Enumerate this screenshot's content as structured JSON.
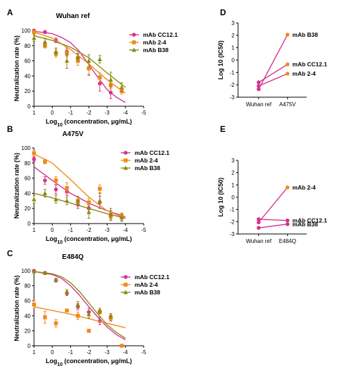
{
  "colors": {
    "cc121": "#d6348e",
    "ab24": "#f08a1c",
    "b38": "#8a8a12"
  },
  "chart_data": [
    {
      "panel": "A",
      "type": "line",
      "title": "Wuhan ref",
      "xlabel": "Log10 (concentration, μg/mL)",
      "ylabel": "Neutralization rate (%)",
      "xlim": [
        1,
        -5
      ],
      "ylim": [
        0,
        100
      ],
      "xticks": [
        "1",
        "0",
        "-1",
        "-2",
        "-3",
        "-4",
        "-5"
      ],
      "yticks": [
        "0",
        "20",
        "40",
        "60",
        "80",
        "100"
      ],
      "legend": "top-right",
      "series": [
        {
          "name": "mAb CC12.1",
          "color": "cc121",
          "marker": "circle",
          "x": [
            1,
            0.4,
            -0.2,
            -0.8,
            -1.4,
            -2.0,
            -2.6,
            -3.2
          ],
          "y": [
            100,
            98,
            87,
            72,
            64,
            50,
            30,
            18
          ],
          "err": [
            1,
            2,
            3,
            5,
            5,
            9,
            10,
            8
          ],
          "fit": [
            [
              1,
              99
            ],
            [
              0,
              96
            ],
            [
              -0.5,
              91
            ],
            [
              -1,
              84
            ],
            [
              -1.5,
              72
            ],
            [
              -2,
              55
            ],
            [
              -2.5,
              38
            ],
            [
              -3,
              22
            ],
            [
              -3.5,
              12
            ],
            [
              -4,
              5
            ]
          ]
        },
        {
          "name": "mAb 2-4",
          "color": "ab24",
          "marker": "square",
          "x": [
            1,
            0.4,
            -0.2,
            -0.8,
            -1.4,
            -2.0,
            -2.6,
            -3.2,
            -3.8
          ],
          "y": [
            98,
            80,
            70,
            70,
            60,
            50,
            38,
            28,
            20
          ],
          "err": [
            2,
            3,
            5,
            5,
            6,
            8,
            6,
            5,
            4
          ],
          "fit": [
            [
              1,
              98
            ],
            [
              0,
              90
            ],
            [
              -1,
              75
            ],
            [
              -2,
              56
            ],
            [
              -3,
              35
            ],
            [
              -4,
              17
            ]
          ]
        },
        {
          "name": "mAb B38",
          "color": "b38",
          "marker": "triangle",
          "x": [
            1,
            0.4,
            -0.2,
            -0.8,
            -1.4,
            -2.0,
            -2.6,
            -3.2,
            -3.8
          ],
          "y": [
            90,
            85,
            72,
            60,
            65,
            60,
            62,
            35,
            25
          ],
          "err": [
            4,
            5,
            5,
            10,
            5,
            8,
            5,
            10,
            6
          ],
          "fit": [
            [
              1,
              93
            ],
            [
              0,
              87
            ],
            [
              -1,
              78
            ],
            [
              -2,
              64
            ],
            [
              -3,
              44
            ],
            [
              -4,
              25
            ]
          ]
        }
      ]
    },
    {
      "panel": "B",
      "type": "line",
      "title": "A475V",
      "xlabel": "Log10 (concentration, μg/mL)",
      "ylabel": "Neutralization rate (%)",
      "xlim": [
        1,
        -5
      ],
      "ylim": [
        0,
        100
      ],
      "xticks": [
        "1",
        "0",
        "-1",
        "-2",
        "-3",
        "-4",
        "-5"
      ],
      "yticks": [
        "0",
        "20",
        "40",
        "60",
        "80",
        "100"
      ],
      "legend": "top-right",
      "series": [
        {
          "name": "mAb CC12.1",
          "color": "cc121",
          "marker": "circle",
          "x": [
            1,
            0.4,
            -0.2,
            -0.8,
            -1.4,
            -2.0,
            -2.6,
            -3.2,
            -3.8
          ],
          "y": [
            85,
            57,
            45,
            42,
            25,
            20,
            28,
            12,
            8
          ],
          "err": [
            3,
            5,
            6,
            5,
            5,
            5,
            8,
            5,
            4
          ],
          "fit": [
            [
              1,
              75
            ],
            [
              0,
              57
            ],
            [
              -1,
              40
            ],
            [
              -2,
              27
            ],
            [
              -3,
              17
            ],
            [
              -4,
              9
            ]
          ]
        },
        {
          "name": "mAb 2-4",
          "color": "ab24",
          "marker": "square",
          "x": [
            1,
            0.4,
            -0.2,
            -0.8,
            -1.4,
            -2.0,
            -2.6,
            -3.2,
            -3.8
          ],
          "y": [
            93,
            82,
            57,
            47,
            30,
            28,
            46,
            10,
            10
          ],
          "err": [
            4,
            3,
            5,
            7,
            5,
            5,
            5,
            5,
            4
          ],
          "fit": [
            [
              1,
              92
            ],
            [
              0,
              80
            ],
            [
              -1,
              58
            ],
            [
              -2,
              35
            ],
            [
              -3,
              17
            ],
            [
              -4,
              7
            ]
          ]
        },
        {
          "name": "mAb B38",
          "color": "b38",
          "marker": "triangle",
          "x": [
            1,
            0.4,
            -0.2,
            -0.8,
            -1.4,
            -2.0,
            -2.6,
            -3.2,
            -3.8
          ],
          "y": [
            32,
            40,
            32,
            30,
            30,
            15,
            30,
            12,
            8
          ],
          "err": [
            5,
            5,
            5,
            5,
            6,
            8,
            10,
            8,
            5
          ],
          "fit": [
            [
              1,
              40
            ],
            [
              0,
              34
            ],
            [
              -1,
              27
            ],
            [
              -2,
              20
            ],
            [
              -3,
              13
            ],
            [
              -4,
              7
            ]
          ]
        }
      ]
    },
    {
      "panel": "C",
      "type": "line",
      "title": "E484Q",
      "xlabel": "Log10 (concentration, μg/mL)",
      "ylabel": "Neutralization rate (%)",
      "xlim": [
        1,
        -5
      ],
      "ylim": [
        0,
        100
      ],
      "xticks": [
        "1",
        "0",
        "-1",
        "-2",
        "-3",
        "-4",
        "-5"
      ],
      "yticks": [
        "0",
        "20",
        "40",
        "60",
        "80",
        "100"
      ],
      "legend": "top-right",
      "series": [
        {
          "name": "mAb CC12.1",
          "color": "cc121",
          "marker": "circle",
          "x": [
            1,
            0.4,
            -0.2,
            -0.8,
            -1.4,
            -2.0,
            -2.6,
            -3.2
          ],
          "y": [
            100,
            97,
            87,
            70,
            52,
            45,
            33,
            37
          ],
          "err": [
            1,
            2,
            2,
            3,
            4,
            5,
            5,
            4
          ],
          "fit": [
            [
              1,
              99
            ],
            [
              0,
              95
            ],
            [
              -0.5,
              90
            ],
            [
              -1,
              80
            ],
            [
              -1.5,
              67
            ],
            [
              -2,
              52
            ],
            [
              -2.5,
              38
            ],
            [
              -3,
              25
            ],
            [
              -3.5,
              15
            ],
            [
              -4,
              8
            ]
          ]
        },
        {
          "name": "mAb 2-4",
          "color": "ab24",
          "marker": "square",
          "x": [
            1,
            0.4,
            -0.2,
            -0.8,
            -1.4,
            -2.0,
            -2.6,
            -3.2,
            -3.8
          ],
          "y": [
            55,
            38,
            30,
            47,
            40,
            20,
            45,
            37,
            0
          ],
          "err": [
            5,
            8,
            5,
            2,
            5,
            2,
            3,
            3,
            1
          ],
          "fit": [
            [
              1,
              52
            ],
            [
              0,
              47
            ],
            [
              -1,
              42
            ],
            [
              -2,
              36
            ],
            [
              -3,
              30
            ],
            [
              -4,
              24
            ]
          ]
        },
        {
          "name": "mAb B38",
          "color": "b38",
          "marker": "triangle",
          "x": [
            1,
            0.4,
            -0.2,
            -0.8,
            -1.4,
            -2.0,
            -2.6,
            -3.2
          ],
          "y": [
            99,
            97,
            88,
            72,
            55,
            42,
            47,
            40
          ],
          "err": [
            1,
            2,
            2,
            3,
            4,
            5,
            3,
            3
          ],
          "fit": [
            [
              1,
              99
            ],
            [
              0,
              96
            ],
            [
              -0.5,
              92
            ],
            [
              -1,
              84
            ],
            [
              -1.5,
              72
            ],
            [
              -2,
              57
            ],
            [
              -2.5,
              42
            ],
            [
              -3,
              28
            ],
            [
              -3.5,
              18
            ],
            [
              -4,
              10
            ]
          ]
        }
      ]
    },
    {
      "panel": "D",
      "type": "line",
      "title": "",
      "xlabel": "",
      "ylabel": "Log 10 (IC50)",
      "categories": [
        "Wuhan ref",
        "A475V"
      ],
      "ylim": [
        -3,
        3
      ],
      "yticks": [
        "-3",
        "-2",
        "-1",
        "0",
        "1",
        "2",
        "3"
      ],
      "series": [
        {
          "name": "mAb B38",
          "color": "cc121",
          "values": [
            -2.35,
            2.05
          ]
        },
        {
          "name": "mAb CC12.1",
          "color": "cc121",
          "values": [
            -1.8,
            -0.35
          ]
        },
        {
          "name": "mAb 2-4",
          "color": "cc121",
          "values": [
            -2.1,
            -1.1
          ]
        }
      ]
    },
    {
      "panel": "E",
      "type": "line",
      "title": "",
      "xlabel": "",
      "ylabel": "Log 10 (IC50)",
      "categories": [
        "Wuhan ref",
        "E484Q"
      ],
      "ylim": [
        -3,
        3
      ],
      "yticks": [
        "-3",
        "-2",
        "-1",
        "0",
        "1",
        "2",
        "3"
      ],
      "series": [
        {
          "name": "mAb 2-4",
          "color": "cc121",
          "values": [
            -2.05,
            0.8
          ]
        },
        {
          "name": "mAb CC12.1",
          "color": "cc121",
          "values": [
            -1.8,
            -1.9
          ]
        },
        {
          "name": "mAb B38",
          "color": "cc121",
          "values": [
            -2.5,
            -2.2
          ]
        }
      ]
    }
  ]
}
